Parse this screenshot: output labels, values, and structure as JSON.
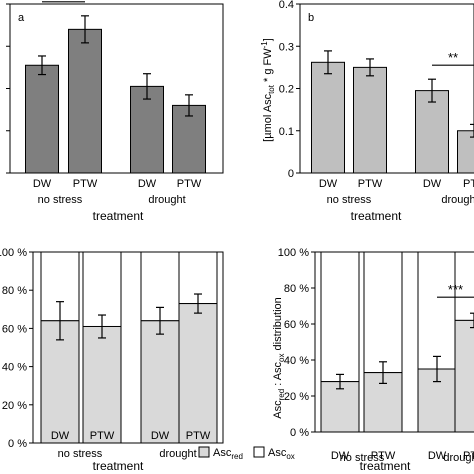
{
  "chart_data": [
    {
      "panel_label": "a",
      "type": "bar",
      "categories": [
        "DW",
        "PTW",
        "DW",
        "PTW"
      ],
      "groups": [
        "no stress",
        "drought"
      ],
      "values": [
        0.255,
        0.34,
        0.205,
        0.16
      ],
      "errors": [
        0.022,
        0.032,
        0.03,
        0.025
      ],
      "ylim": [
        0,
        0.4
      ],
      "yticks": [
        "",
        "",
        "",
        "",
        ""
      ],
      "xlabel": "treatment",
      "ylabel": "",
      "bar_color": "#7f7f7f",
      "significance": [
        {
          "label": "**",
          "from": 0,
          "to": 1
        }
      ]
    },
    {
      "panel_label": "b",
      "type": "bar",
      "categories": [
        "DW",
        "PTW",
        "DW",
        "PTW"
      ],
      "groups": [
        "no stress",
        "drought"
      ],
      "values": [
        0.262,
        0.25,
        0.195,
        0.1
      ],
      "errors": [
        0.027,
        0.02,
        0.027,
        0.015
      ],
      "ylim": [
        0,
        0.4
      ],
      "yticks": [
        "0",
        "0.1",
        "0.2",
        "0.3",
        "0.4"
      ],
      "xlabel": "treatment",
      "ylabel": "[µmol Asc_tot * g FW⁻¹]",
      "bar_color": "#bfbfbf",
      "significance": [
        {
          "label": "**",
          "from": 2,
          "to": 3
        }
      ]
    },
    {
      "panel_label": "c",
      "type": "stacked_bar_percent",
      "categories": [
        "DW",
        "PTW",
        "DW",
        "PTW"
      ],
      "groups": [
        "no stress",
        "drought"
      ],
      "series": [
        {
          "name": "Asc_red",
          "values": [
            64,
            61,
            64,
            73
          ]
        },
        {
          "name": "Asc_ox",
          "values": [
            36,
            39,
            36,
            27
          ]
        }
      ],
      "errors": [
        10,
        6,
        7,
        5
      ],
      "ylim": [
        0,
        100
      ],
      "yticks": [
        "0 %",
        "20 %",
        "40 %",
        "60 %",
        "80 %",
        "100 %"
      ],
      "xlabel": "treatment",
      "ylabel": "",
      "colors": [
        "#d9d9d9",
        "#ffffff"
      ]
    },
    {
      "panel_label": "d",
      "type": "stacked_bar_percent",
      "categories": [
        "DW",
        "PTW",
        "DW",
        "PTW"
      ],
      "groups": [
        "no stress",
        "drought"
      ],
      "series": [
        {
          "name": "Asc_red",
          "values": [
            28,
            33,
            35,
            62
          ]
        },
        {
          "name": "Asc_ox",
          "values": [
            72,
            67,
            65,
            38
          ]
        }
      ],
      "errors": [
        4,
        6,
        7,
        4
      ],
      "ylim": [
        0,
        100
      ],
      "yticks": [
        "0 %",
        "20 %",
        "40 %",
        "60 %",
        "80 %",
        "100 %"
      ],
      "xlabel": "treatment",
      "ylabel": "Asc_red : Asc_ox distribution",
      "colors": [
        "#d9d9d9",
        "#ffffff"
      ],
      "significance": [
        {
          "label": "***",
          "from": 2,
          "to": 3
        }
      ]
    }
  ],
  "legend": {
    "items": [
      {
        "base": "Asc",
        "sub": "red",
        "color": "#d9d9d9"
      },
      {
        "base": "Asc",
        "sub": "ox",
        "color": "#ffffff"
      }
    ],
    "placement": "bottom-right"
  },
  "labels": {
    "ylabel_b": {
      "pre": "[µmol Asc",
      "sub": "tot",
      "mid": " * g FW",
      "sup": "-1",
      "post": "]"
    },
    "ylabel_d": {
      "a": "Asc",
      "a_sub": "red",
      "sep": " : Asc",
      "b_sub": "ox",
      "post": " distribution"
    }
  }
}
